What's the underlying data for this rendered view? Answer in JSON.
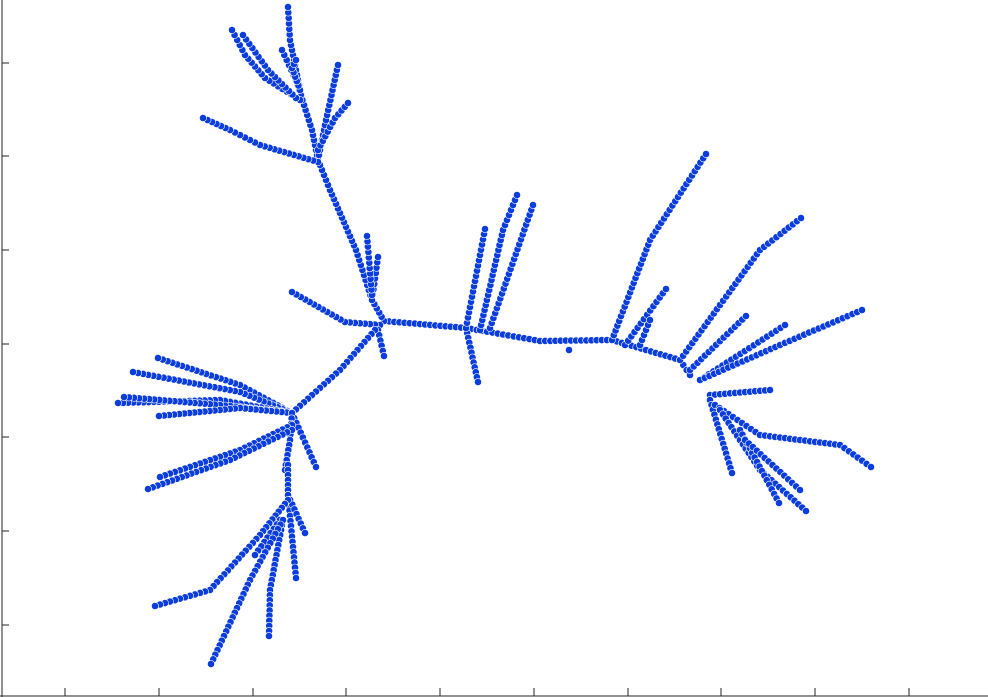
{
  "chart_data": {
    "type": "scatter",
    "title": "",
    "xlabel": "",
    "ylabel": "",
    "xlim": [
      0,
      988
    ],
    "ylim": [
      0,
      697
    ],
    "x_ticks": [
      65,
      159,
      253,
      346,
      440,
      534,
      628,
      721,
      815,
      909
    ],
    "y_ticks": [
      63,
      156,
      250,
      344,
      437,
      531,
      625
    ],
    "grid": false,
    "legend": "none",
    "colors": {
      "marker": "#0a3ddb",
      "marker_edge": "#ffffff",
      "axis": "#262626"
    },
    "series": [
      {
        "branches": [
          {
            "path": [
              [
                384,
                321
              ],
              [
                466,
                328
              ],
              [
                540,
                341
              ],
              [
                612,
                340
              ],
              [
                680,
                360
              ],
              [
                690,
                375
              ]
            ]
          },
          {
            "path": [
              [
                384,
                321
              ],
              [
                372,
                300
              ],
              [
                356,
                250
              ],
              [
                330,
                190
              ],
              [
                318,
                160
              ]
            ]
          },
          {
            "path": [
              [
                318,
                160
              ],
              [
                312,
                130
              ],
              [
                300,
                90
              ],
              [
                290,
                40
              ],
              [
                288,
                7
              ]
            ]
          },
          {
            "path": [
              [
                312,
                130
              ],
              [
                296,
                80
              ],
              [
                282,
                50
              ]
            ]
          },
          {
            "path": [
              [
                318,
                160
              ],
              [
                326,
                120
              ],
              [
                338,
                65
              ]
            ]
          },
          {
            "path": [
              [
                318,
                150
              ],
              [
                335,
                118
              ],
              [
                348,
                103
              ]
            ]
          },
          {
            "path": [
              [
                318,
                162
              ],
              [
                260,
                145
              ],
              [
                230,
                130
              ],
              [
                203,
                118
              ]
            ]
          },
          {
            "path": [
              [
                300,
                100
              ],
              [
                265,
                78
              ],
              [
                245,
                55
              ],
              [
                232,
                30
              ]
            ]
          },
          {
            "path": [
              [
                296,
                98
              ],
              [
                268,
                70
              ],
              [
                243,
                35
              ]
            ]
          },
          {
            "path": [
              [
                300,
                90
              ],
              [
                292,
                68
              ],
              [
                296,
                60
              ]
            ]
          },
          {
            "path": [
              [
                372,
                300
              ],
              [
                378,
                257
              ]
            ]
          },
          {
            "path": [
              [
                372,
                295
              ],
              [
                367,
                236
              ]
            ]
          },
          {
            "path": [
              [
                380,
                325
              ],
              [
                345,
                322
              ],
              [
                292,
                292
              ]
            ]
          },
          {
            "path": [
              [
                378,
                330
              ],
              [
                384,
                356
              ]
            ]
          },
          {
            "path": [
              [
                375,
                330
              ],
              [
                340,
                370
              ],
              [
                292,
                413
              ]
            ]
          },
          {
            "path": [
              [
                292,
                413
              ],
              [
                240,
                385
              ],
              [
                158,
                358
              ]
            ]
          },
          {
            "path": [
              [
                292,
                413
              ],
              [
                240,
                392
              ],
              [
                133,
                372
              ]
            ]
          },
          {
            "path": [
              [
                292,
                413
              ],
              [
                220,
                400
              ],
              [
                118,
                403
              ]
            ]
          },
          {
            "path": [
              [
                292,
                413
              ],
              [
                220,
                405
              ],
              [
                124,
                397
              ]
            ]
          },
          {
            "path": [
              [
                292,
                413
              ],
              [
                240,
                408
              ],
              [
                159,
                416
              ]
            ]
          },
          {
            "path": [
              [
                292,
                413
              ],
              [
                316,
                467
              ]
            ]
          },
          {
            "path": [
              [
                292,
                413
              ],
              [
                290,
                440
              ],
              [
                285,
                470
              ]
            ]
          },
          {
            "path": [
              [
                292,
                425
              ],
              [
                240,
                450
              ],
              [
                160,
                477
              ]
            ]
          },
          {
            "path": [
              [
                292,
                430
              ],
              [
                230,
                460
              ],
              [
                148,
                489
              ]
            ]
          },
          {
            "path": [
              [
                288,
                465
              ],
              [
                288,
                495
              ],
              [
                296,
                578
              ]
            ]
          },
          {
            "path": [
              [
                288,
                495
              ],
              [
                305,
                533
              ]
            ]
          },
          {
            "path": [
              [
                288,
                500
              ],
              [
                260,
                535
              ],
              [
                210,
                590
              ],
              [
                155,
                606
              ]
            ]
          },
          {
            "path": [
              [
                280,
                520
              ],
              [
                255,
                555
              ]
            ]
          },
          {
            "path": [
              [
                282,
                525
              ],
              [
                270,
                590
              ],
              [
                269,
                636
              ]
            ]
          },
          {
            "path": [
              [
                283,
                520
              ],
              [
                250,
                580
              ],
              [
                211,
                664
              ]
            ]
          },
          {
            "path": [
              [
                466,
                328
              ],
              [
                478,
                382
              ]
            ]
          },
          {
            "path": [
              [
                466,
                328
              ],
              [
                485,
                229
              ]
            ]
          },
          {
            "path": [
              [
                480,
                330
              ],
              [
                503,
                230
              ],
              [
                517,
                195
              ]
            ]
          },
          {
            "path": [
              [
                490,
                328
              ],
              [
                533,
                205
              ]
            ]
          },
          {
            "path": [
              [
                569,
                350
              ],
              [
                569,
                350
              ]
            ]
          },
          {
            "path": [
              [
                612,
                340
              ],
              [
                650,
                240
              ],
              [
                706,
                154
              ]
            ]
          },
          {
            "path": [
              [
                625,
                345
              ],
              [
                666,
                289
              ]
            ]
          },
          {
            "path": [
              [
                640,
                345
              ],
              [
                650,
                320
              ]
            ]
          },
          {
            "path": [
              [
                680,
                360
              ],
              [
                760,
                250
              ],
              [
                801,
                218
              ]
            ]
          },
          {
            "path": [
              [
                690,
                370
              ],
              [
                746,
                316
              ]
            ]
          },
          {
            "path": [
              [
                700,
                380
              ],
              [
                785,
                325
              ]
            ]
          },
          {
            "path": [
              [
                700,
                380
              ],
              [
                780,
                345
              ],
              [
                862,
                310
              ]
            ]
          },
          {
            "path": [
              [
                710,
                395
              ],
              [
                770,
                390
              ]
            ]
          },
          {
            "path": [
              [
                710,
                400
              ],
              [
                732,
                473
              ]
            ]
          },
          {
            "path": [
              [
                715,
                405
              ],
              [
                760,
                435
              ],
              [
                840,
                445
              ],
              [
                871,
                467
              ]
            ]
          },
          {
            "path": [
              [
                720,
                410
              ],
              [
                760,
                470
              ],
              [
                806,
                511
              ]
            ]
          },
          {
            "path": [
              [
                740,
                430
              ],
              [
                779,
                503
              ]
            ]
          },
          {
            "path": [
              [
                745,
                440
              ],
              [
                800,
                490
              ]
            ]
          }
        ]
      }
    ]
  }
}
